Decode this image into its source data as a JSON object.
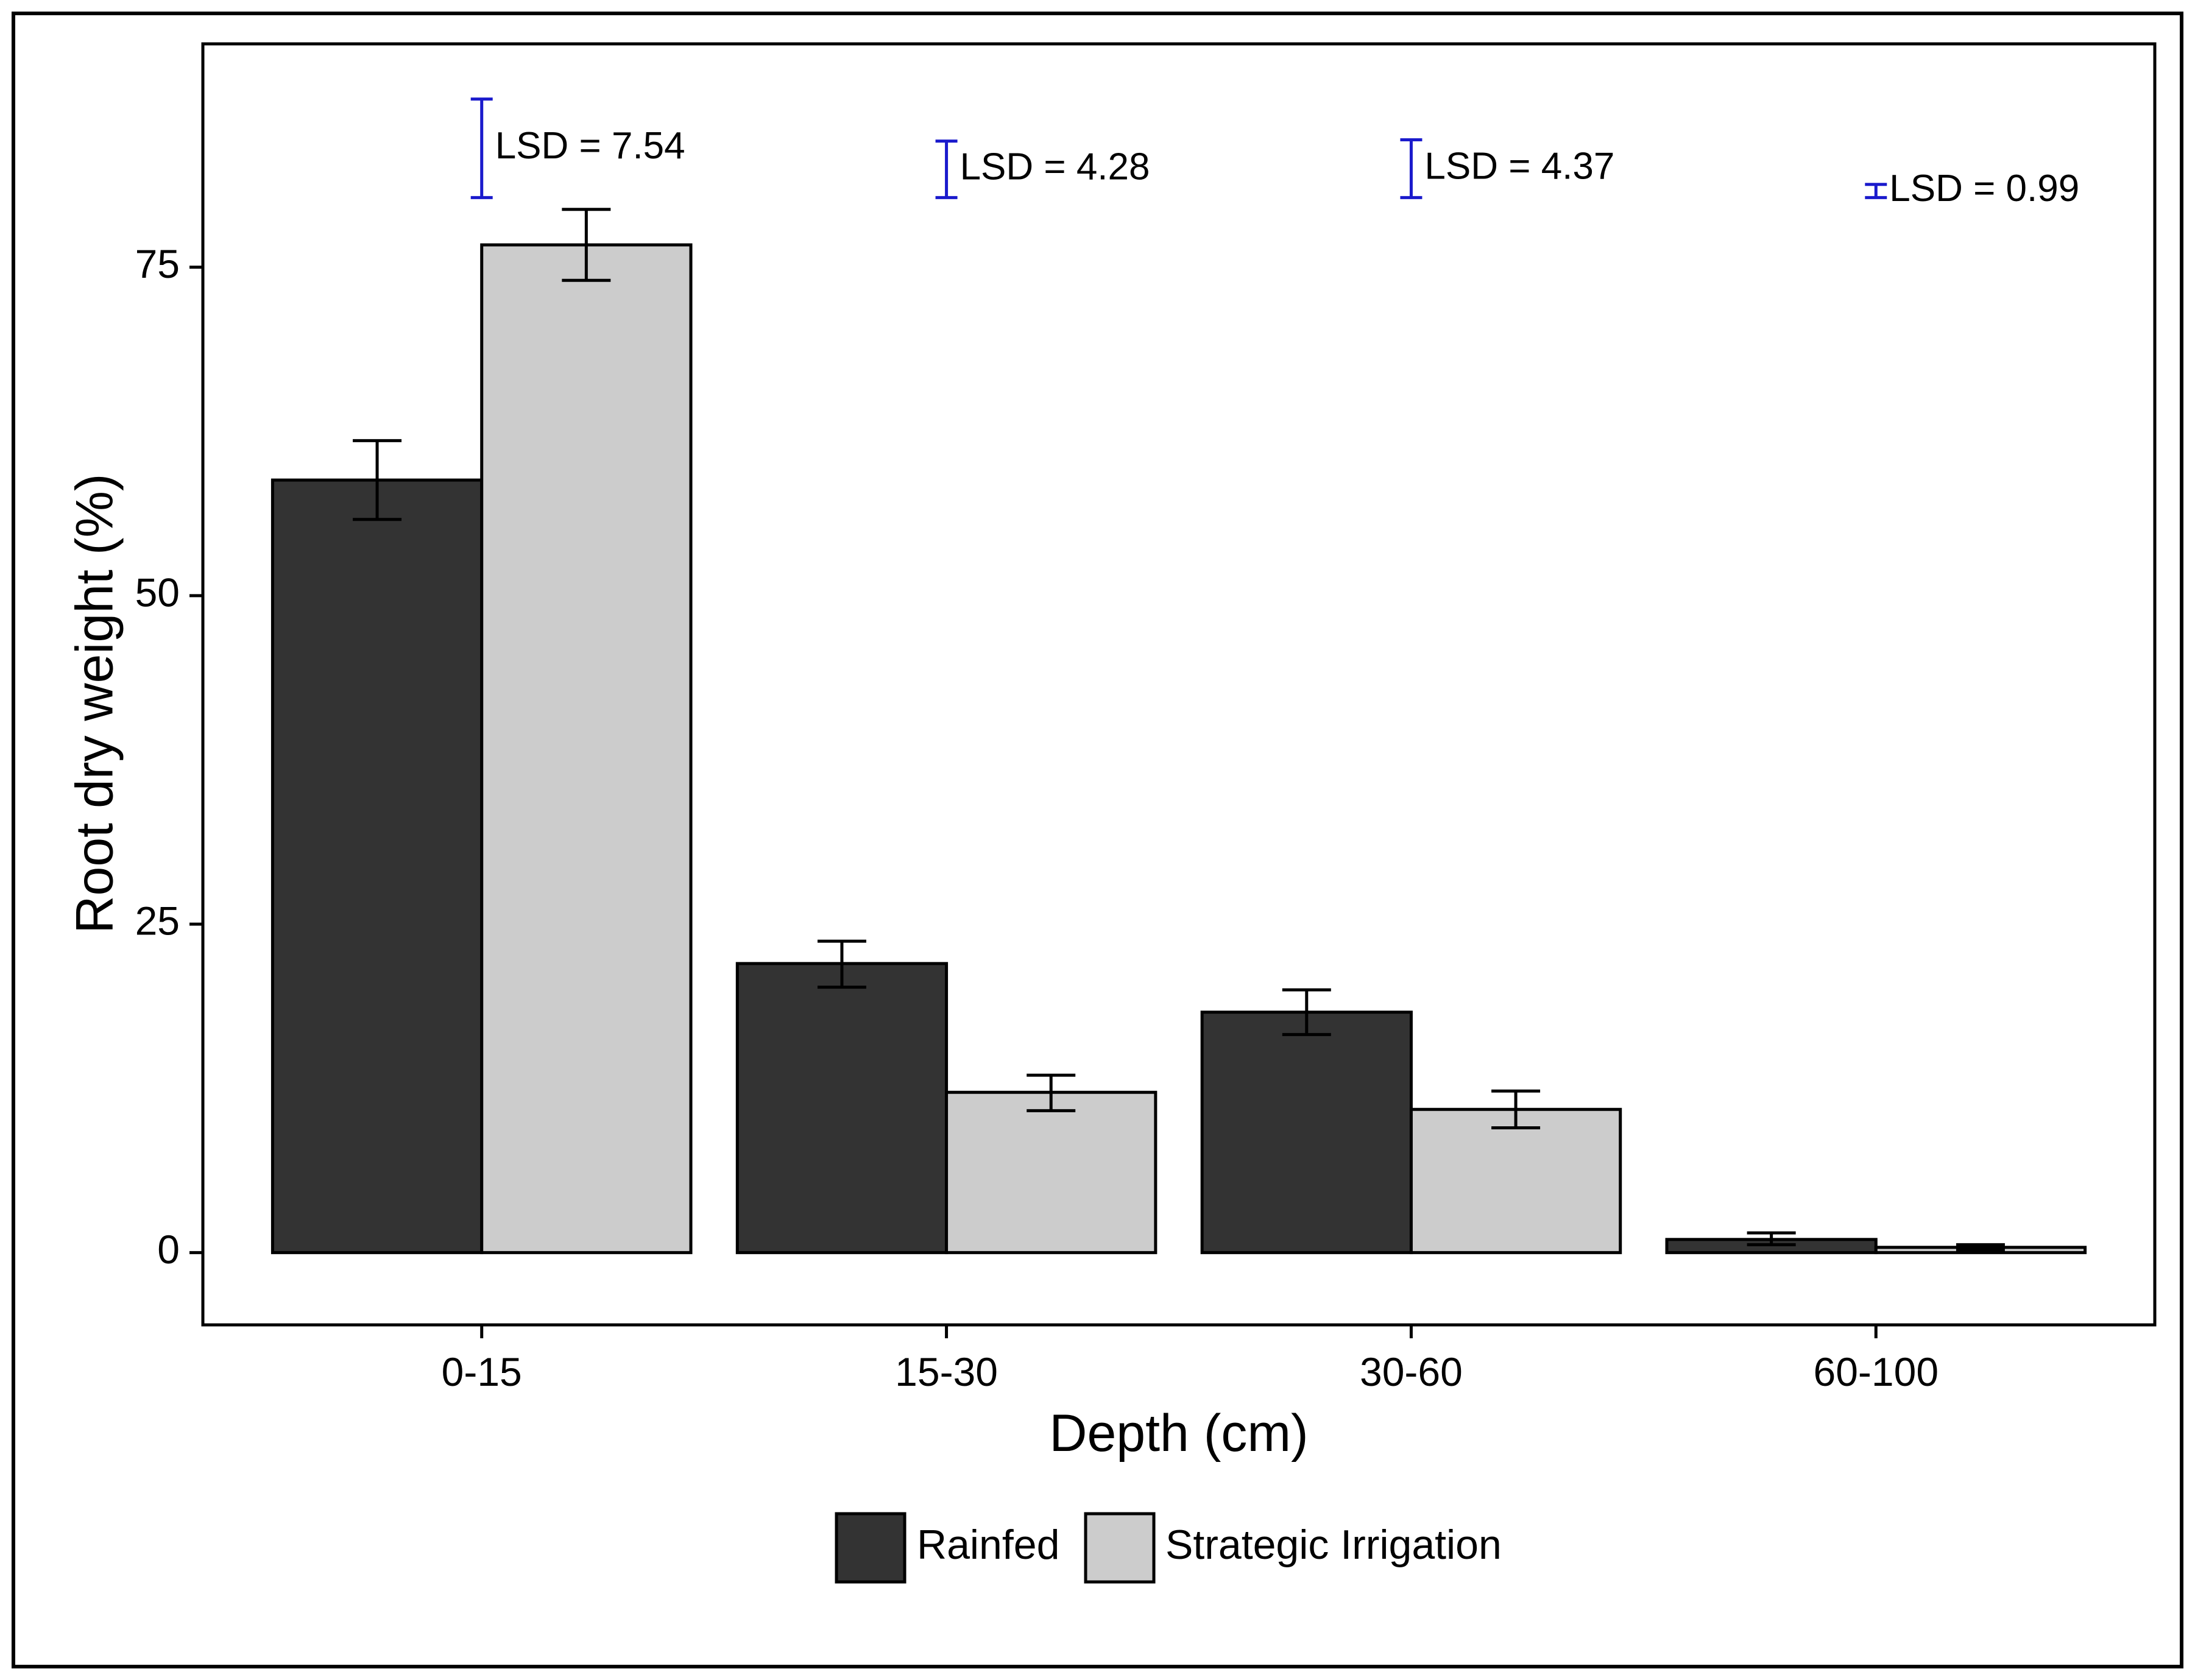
{
  "chart_data": {
    "type": "bar",
    "title": "",
    "xlabel": "Depth (cm)",
    "ylabel": "Root dry weight (%)",
    "categories": [
      "0-15",
      "15-30",
      "30-60",
      "60-100"
    ],
    "ylim": [
      -5.5,
      92
    ],
    "yticks": [
      0,
      25,
      50,
      75
    ],
    "grid": false,
    "legend_position": "bottom",
    "series": [
      {
        "name": "Rainfed",
        "color": "#333333",
        "values": [
          58.8,
          22.0,
          18.3,
          1.0
        ],
        "err_low": [
          55.8,
          20.2,
          16.6,
          0.6
        ],
        "err_high": [
          61.8,
          23.7,
          20.0,
          1.5
        ]
      },
      {
        "name": "Strategic Irrigation",
        "color": "#cccccc",
        "values": [
          76.7,
          12.2,
          10.9,
          0.4
        ],
        "err_low": [
          74.0,
          10.8,
          9.5,
          0.2
        ],
        "err_high": [
          79.4,
          13.5,
          12.3,
          0.6
        ]
      }
    ],
    "lsd": [
      {
        "label": "LSD = 7.54",
        "low": 80.3,
        "high": 87.8,
        "color": "#1a1acc"
      },
      {
        "label": "LSD = 4.28",
        "low": 80.3,
        "high": 84.6,
        "color": "#1a1acc"
      },
      {
        "label": "LSD = 4.37",
        "low": 80.3,
        "high": 84.7,
        "color": "#1a1acc"
      },
      {
        "label": "LSD = 0.99",
        "low": 80.3,
        "high": 81.3,
        "color": "#1a1acc"
      }
    ]
  }
}
